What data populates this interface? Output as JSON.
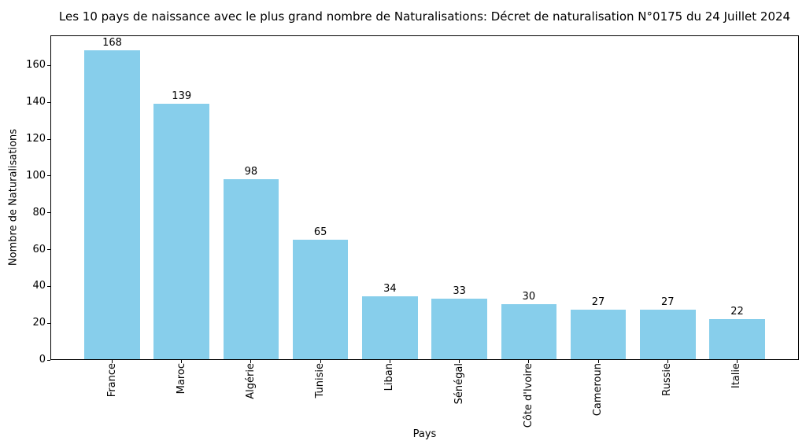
{
  "chart_data": {
    "type": "bar",
    "title": "Les 10 pays de naissance avec le plus grand nombre de Naturalisations: Décret de naturalisation N°0175 du 24 Juillet 2024",
    "xlabel": "Pays",
    "ylabel": "Nombre de Naturalisations",
    "categories": [
      "France",
      "Maroc",
      "Algérie",
      "Tunisie",
      "Liban",
      "Sénégal",
      "Côte d'Ivoire",
      "Cameroun",
      "Russie",
      "Italie"
    ],
    "values": [
      168,
      139,
      98,
      65,
      34,
      33,
      30,
      27,
      27,
      22
    ],
    "bar_labels": [
      168,
      139,
      98,
      65,
      34,
      33,
      30,
      27,
      27,
      22
    ],
    "yticks": [
      0,
      20,
      40,
      60,
      80,
      100,
      120,
      140,
      160
    ],
    "ylim": [
      0,
      176.4
    ],
    "bar_color": "#87CEEB",
    "grid": false,
    "legend": null
  }
}
